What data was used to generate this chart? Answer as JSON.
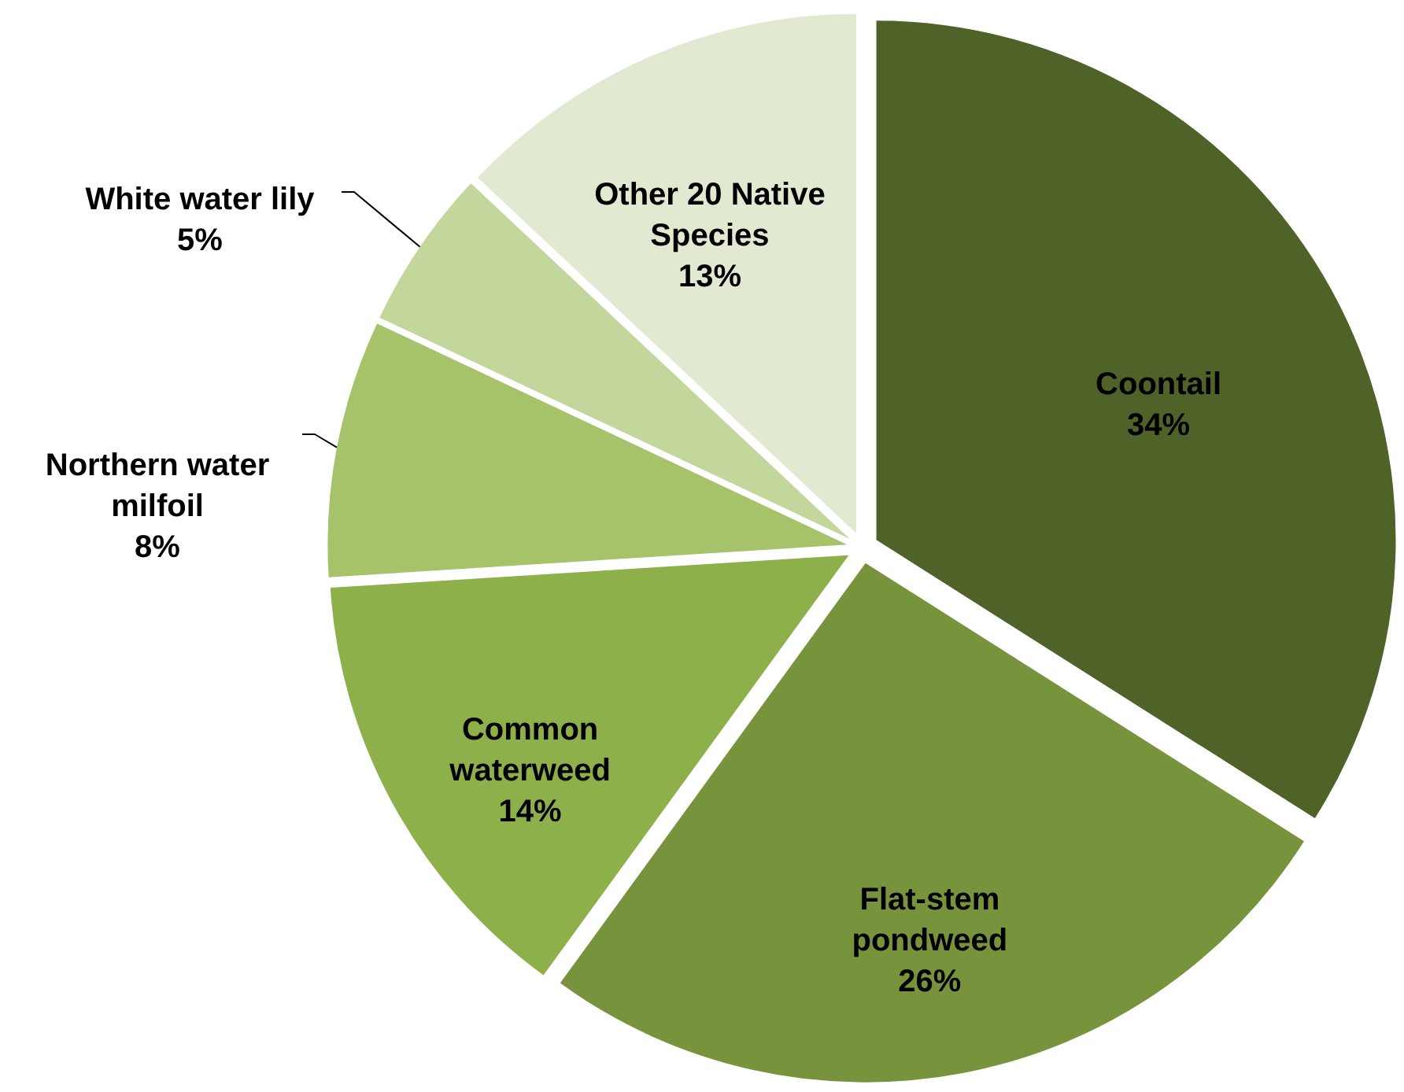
{
  "chart_data": {
    "type": "pie",
    "categories": [
      "Coontail",
      "Flat-stem pondweed",
      "Common waterweed",
      "Northern water milfoil",
      "White water lily",
      "Other 20 Native Species"
    ],
    "values": [
      34,
      26,
      14,
      8,
      5,
      13
    ],
    "colors": [
      "#4f6228",
      "#77933c",
      "#8db04a",
      "#a6c36a",
      "#c3d69b",
      "#e1e9d0"
    ],
    "value_labels": [
      "34%",
      "26%",
      "14%",
      "8%",
      "5%",
      "13%"
    ]
  }
}
